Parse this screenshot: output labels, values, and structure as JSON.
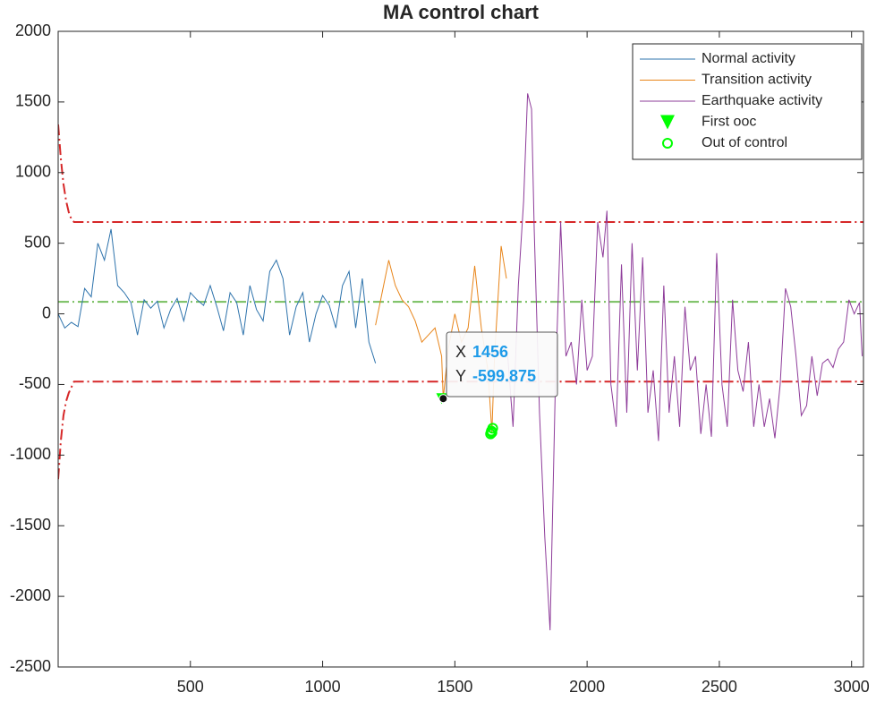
{
  "chart_data": {
    "type": "line",
    "title": "MA control chart",
    "xlim": [
      0,
      3045
    ],
    "ylim": [
      -2500,
      2000
    ],
    "xticks": [
      500,
      1000,
      1500,
      2000,
      2500,
      3000
    ],
    "yticks": [
      -2500,
      -2000,
      -1500,
      -1000,
      -500,
      0,
      500,
      1000,
      1500,
      2000
    ],
    "legend_position": "upper right",
    "series": [
      {
        "name": "Normal activity",
        "color": "#2e73ac",
        "marker": "line",
        "x": [
          0,
          25,
          50,
          75,
          100,
          125,
          150,
          175,
          200,
          225,
          250,
          275,
          300,
          325,
          350,
          375,
          400,
          425,
          450,
          475,
          500,
          525,
          550,
          575,
          600,
          625,
          650,
          675,
          700,
          725,
          750,
          775,
          800,
          825,
          850,
          875,
          900,
          925,
          950,
          975,
          1000,
          1025,
          1050,
          1075,
          1100,
          1125,
          1150,
          1175,
          1200
        ],
        "values": [
          0,
          -100,
          -60,
          -90,
          180,
          120,
          500,
          380,
          600,
          200,
          150,
          80,
          -150,
          100,
          40,
          90,
          -100,
          30,
          110,
          -50,
          150,
          100,
          60,
          200,
          50,
          -120,
          150,
          80,
          -150,
          200,
          30,
          -50,
          300,
          380,
          250,
          -150,
          50,
          150,
          -200,
          0,
          130,
          60,
          -100,
          200,
          300,
          -100,
          250,
          -200,
          -350
        ]
      },
      {
        "name": "Transition activity",
        "color": "#e8851a",
        "marker": "line",
        "x": [
          1200,
          1225,
          1250,
          1275,
          1300,
          1325,
          1350,
          1375,
          1400,
          1425,
          1450,
          1456,
          1475,
          1500,
          1525,
          1550,
          1575,
          1600,
          1625,
          1640,
          1650,
          1675,
          1695
        ],
        "values": [
          -80,
          150,
          380,
          200,
          100,
          50,
          -50,
          -200,
          -150,
          -100,
          -300,
          -599.875,
          -250,
          0,
          -200,
          -100,
          340,
          -100,
          -400,
          -840,
          -300,
          480,
          250
        ]
      },
      {
        "name": "Earthquake activity",
        "color": "#8e3c9a",
        "marker": "line",
        "x": [
          1700,
          1720,
          1740,
          1760,
          1775,
          1790,
          1800,
          1820,
          1840,
          1860,
          1880,
          1900,
          1920,
          1940,
          1960,
          1980,
          2000,
          2020,
          2040,
          2060,
          2075,
          2090,
          2110,
          2130,
          2150,
          2170,
          2190,
          2210,
          2230,
          2250,
          2270,
          2290,
          2310,
          2330,
          2350,
          2370,
          2390,
          2410,
          2430,
          2450,
          2470,
          2490,
          2510,
          2530,
          2550,
          2570,
          2590,
          2610,
          2630,
          2650,
          2670,
          2690,
          2710,
          2730,
          2750,
          2770,
          2790,
          2810,
          2830,
          2850,
          2870,
          2890,
          2910,
          2930,
          2950,
          2970,
          2990,
          3010,
          3030,
          3040
        ],
        "values": [
          -300,
          -800,
          200,
          800,
          1560,
          1450,
          600,
          -700,
          -1580,
          -2240,
          -500,
          650,
          -300,
          -200,
          -500,
          100,
          -400,
          -300,
          650,
          400,
          730,
          -500,
          -800,
          350,
          -700,
          500,
          -400,
          400,
          -700,
          -400,
          -900,
          200,
          -700,
          -300,
          -800,
          50,
          -400,
          -300,
          -850,
          -500,
          -870,
          430,
          -500,
          -800,
          100,
          -400,
          -550,
          -200,
          -800,
          -500,
          -800,
          -600,
          -880,
          -500,
          180,
          50,
          -300,
          -720,
          -650,
          -300,
          -580,
          -350,
          -320,
          -380,
          -250,
          -200,
          100,
          0,
          80,
          -300
        ]
      },
      {
        "name": "First ooc",
        "color": "#00ff00",
        "marker": "triangle",
        "x": [
          1450
        ],
        "values": [
          -600
        ]
      },
      {
        "name": "Out of control",
        "color": "#00ff00",
        "marker": "circle",
        "x": [
          1635,
          1638,
          1640,
          1643
        ],
        "values": [
          -850,
          -830,
          -840,
          -810
        ]
      }
    ],
    "reference_lines": [
      {
        "color": "#d62728",
        "x": [
          0,
          10,
          20,
          30,
          40,
          50,
          60,
          3045
        ],
        "values": [
          1340,
          1100,
          920,
          800,
          720,
          670,
          650,
          650
        ]
      },
      {
        "color": "#d62728",
        "x": [
          0,
          10,
          20,
          30,
          40,
          50,
          60,
          3045
        ],
        "values": [
          -1170,
          -900,
          -720,
          -620,
          -560,
          -520,
          -480,
          -480
        ]
      },
      {
        "color": "#77bf5f",
        "x": [
          0,
          3045
        ],
        "values": [
          85,
          85
        ]
      }
    ],
    "datatip": {
      "x_label": "X",
      "x": 1456,
      "y_label": "Y",
      "y": -599.875
    }
  }
}
